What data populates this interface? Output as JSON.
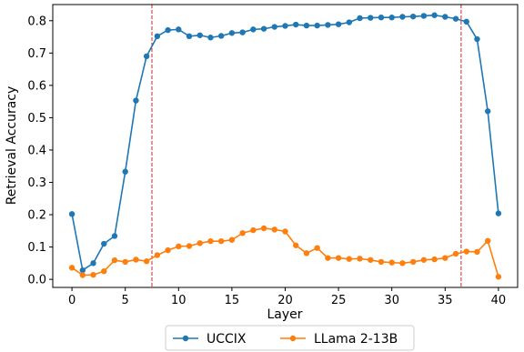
{
  "chart_data": {
    "type": "line",
    "xlabel": "Layer",
    "ylabel": "Retrieval Accuracy",
    "xlim": [
      -1.8,
      41.8
    ],
    "ylim": [
      -0.025,
      0.85
    ],
    "xticks": [
      0,
      5,
      10,
      15,
      20,
      25,
      30,
      35,
      40
    ],
    "yticks": [
      0.0,
      0.1,
      0.2,
      0.3,
      0.4,
      0.5,
      0.6,
      0.7,
      0.8
    ],
    "xtick_labels": [
      "0",
      "5",
      "10",
      "15",
      "20",
      "25",
      "30",
      "35",
      "40"
    ],
    "ytick_labels": [
      "0.0",
      "0.1",
      "0.2",
      "0.3",
      "0.4",
      "0.5",
      "0.6",
      "0.7",
      "0.8"
    ],
    "grid": false,
    "legend_position": "bottom-center-outside",
    "vlines": [
      {
        "x": 7.5,
        "color": "#d62728",
        "style": "dashed"
      },
      {
        "x": 36.5,
        "color": "#d62728",
        "style": "dashed"
      }
    ],
    "x": [
      0,
      1,
      2,
      3,
      4,
      5,
      6,
      7,
      8,
      9,
      10,
      11,
      12,
      13,
      14,
      15,
      16,
      17,
      18,
      19,
      20,
      21,
      22,
      23,
      24,
      25,
      26,
      27,
      28,
      29,
      30,
      31,
      32,
      33,
      34,
      35,
      36,
      37,
      38,
      39,
      40
    ],
    "series": [
      {
        "name": "UCCIX",
        "color": "#1f77b4",
        "values": [
          0.202,
          0.028,
          0.05,
          0.11,
          0.134,
          0.333,
          0.553,
          0.69,
          0.752,
          0.771,
          0.773,
          0.752,
          0.755,
          0.748,
          0.753,
          0.762,
          0.764,
          0.773,
          0.775,
          0.781,
          0.784,
          0.788,
          0.785,
          0.785,
          0.787,
          0.789,
          0.795,
          0.808,
          0.809,
          0.81,
          0.81,
          0.812,
          0.813,
          0.815,
          0.817,
          0.812,
          0.806,
          0.797,
          0.743,
          0.52,
          0.204
        ]
      },
      {
        "name": "LLama 2-13B",
        "color": "#ff7f0e",
        "values": [
          0.036,
          0.013,
          0.014,
          0.025,
          0.059,
          0.054,
          0.061,
          0.056,
          0.075,
          0.09,
          0.102,
          0.103,
          0.112,
          0.118,
          0.118,
          0.122,
          0.143,
          0.152,
          0.158,
          0.154,
          0.148,
          0.105,
          0.081,
          0.097,
          0.066,
          0.066,
          0.063,
          0.064,
          0.06,
          0.054,
          0.052,
          0.05,
          0.054,
          0.06,
          0.062,
          0.066,
          0.079,
          0.086,
          0.085,
          0.119,
          0.008
        ]
      }
    ]
  }
}
